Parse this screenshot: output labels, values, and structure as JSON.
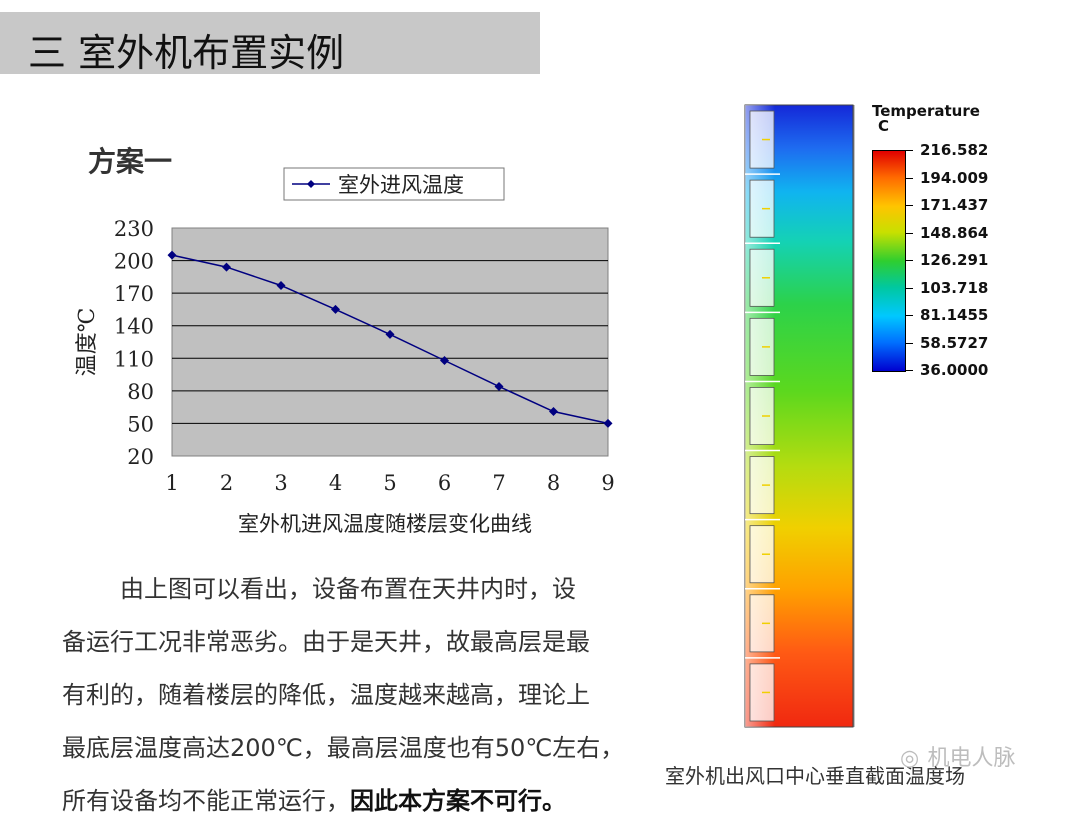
{
  "title": "三  室外机布置实例",
  "scheme_label": "方案一",
  "chart_data": {
    "type": "line",
    "title": "",
    "legend": "室外进风温度",
    "xlabel": "室外机进风温度随楼层变化曲线",
    "ylabel": "温度℃",
    "x": [
      1,
      2,
      3,
      4,
      5,
      6,
      7,
      8,
      9
    ],
    "series": [
      {
        "name": "室外进风温度",
        "values": [
          205,
          194,
          177,
          155,
          132,
          108,
          84,
          61,
          50
        ]
      }
    ],
    "ylim": [
      20,
      230
    ],
    "yticks": [
      20,
      50,
      80,
      110,
      140,
      170,
      200,
      230
    ],
    "grid": true,
    "colors": {
      "line": "#000080",
      "plot_bg": "#c0c0c0",
      "grid": "#000000"
    }
  },
  "paragraph": {
    "line1": "由上图可以看出，设备布置在天井内时，设",
    "line2": "备运行工况非常恶劣。由于是天井，故最高层是最",
    "line3": "有利的，随着楼层的降低，温度越来越高，理论上",
    "line4": "最底层温度高达200℃，最高层温度也有50℃左右，",
    "line5_pre": "所有设备均不能正常运行，",
    "line5_bold": "因此本方案不可行。"
  },
  "figure_caption": "室外机出风口中心垂直截面温度场",
  "heatmap_legend": {
    "title_line1": "Temperature",
    "title_line2": "C",
    "values": [
      "216.582",
      "194.009",
      "171.437",
      "148.864",
      "126.291",
      "103.718",
      "81.1455",
      "58.5727",
      "36.0000"
    ]
  },
  "watermark": {
    "icon": "wechat-icon",
    "text": "机电人脉"
  }
}
